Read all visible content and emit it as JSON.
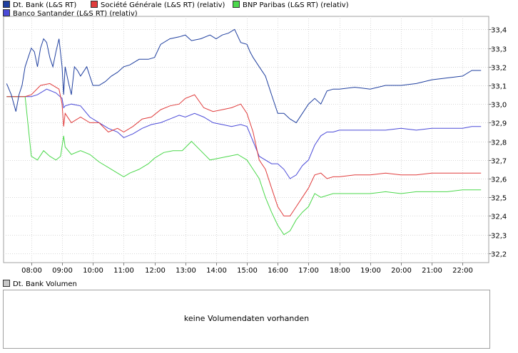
{
  "legend": [
    {
      "label": "Dt. Bank (L&S RT)",
      "color": "#1f3f9f"
    },
    {
      "label": "Société Générale (L&S RT) (relativ)",
      "color": "#e03c3c"
    },
    {
      "label": "BNP Paribas (L&S RT) (relativ)",
      "color": "#4bd84b"
    },
    {
      "label": "Banco Santander (L&S RT) (relativ)",
      "color": "#4a4ad8"
    }
  ],
  "volume": {
    "legend_label": "Dt. Bank Volumen",
    "legend_color": "#c8c8c8",
    "empty_message": "keine Volumendaten vorhanden"
  },
  "chart_data": {
    "type": "line",
    "y_tick_labels": [
      "32,2",
      "32,3",
      "32,4",
      "32,5",
      "32,6",
      "32,7",
      "32,8",
      "32,9",
      "33,0",
      "33,1",
      "33,2",
      "33,3",
      "33,4"
    ],
    "y_ticks": [
      32.2,
      32.3,
      32.4,
      32.5,
      32.6,
      32.7,
      32.8,
      32.9,
      33.0,
      33.1,
      33.2,
      33.3,
      33.4
    ],
    "ylim": [
      32.15,
      33.47
    ],
    "y_axis_side": "right",
    "x_tick_labels": [
      "08:00",
      "09:00",
      "10:00",
      "11:00",
      "12:00",
      "13:00",
      "14:00",
      "15:00",
      "16:00",
      "17:00",
      "18:00",
      "19:00",
      "20:00",
      "21:00",
      "22:00"
    ],
    "x_ticks": [
      8,
      9,
      10,
      11,
      12,
      13,
      14,
      15,
      16,
      17,
      18,
      19,
      20,
      21,
      22
    ],
    "xlim": [
      7.1,
      22.85
    ],
    "grid": true,
    "series": [
      {
        "name": "Dt. Bank (L&S RT)",
        "color": "#1f3f9f",
        "x": [
          7.2,
          7.35,
          7.5,
          7.6,
          7.7,
          7.8,
          7.9,
          8.0,
          8.1,
          8.2,
          8.3,
          8.4,
          8.5,
          8.6,
          8.7,
          8.8,
          8.9,
          9.0,
          9.05,
          9.1,
          9.2,
          9.3,
          9.4,
          9.5,
          9.6,
          9.8,
          10.0,
          10.2,
          10.4,
          10.6,
          10.8,
          11.0,
          11.2,
          11.5,
          11.8,
          12.0,
          12.2,
          12.5,
          12.8,
          13.0,
          13.2,
          13.5,
          13.8,
          14.0,
          14.2,
          14.4,
          14.6,
          14.8,
          15.0,
          15.1,
          15.2,
          15.4,
          15.6,
          15.8,
          16.0,
          16.2,
          16.4,
          16.6,
          16.8,
          17.0,
          17.2,
          17.4,
          17.6,
          17.8,
          18.0,
          18.5,
          19.0,
          19.5,
          20.0,
          20.5,
          21.0,
          21.5,
          22.0,
          22.3,
          22.6
        ],
        "y": [
          33.11,
          33.05,
          32.96,
          33.05,
          33.1,
          33.2,
          33.25,
          33.3,
          33.28,
          33.2,
          33.3,
          33.35,
          33.33,
          33.25,
          33.2,
          33.28,
          33.35,
          33.2,
          33.05,
          33.2,
          33.12,
          33.05,
          33.2,
          33.18,
          33.15,
          33.2,
          33.1,
          33.1,
          33.12,
          33.15,
          33.17,
          33.2,
          33.21,
          33.24,
          33.24,
          33.25,
          33.32,
          33.35,
          33.36,
          33.37,
          33.34,
          33.35,
          33.37,
          33.35,
          33.37,
          33.38,
          33.4,
          33.33,
          33.32,
          33.28,
          33.25,
          33.2,
          33.15,
          33.05,
          32.95,
          32.95,
          32.92,
          32.9,
          32.95,
          33.0,
          33.03,
          33.0,
          33.07,
          33.08,
          33.08,
          33.09,
          33.08,
          33.1,
          33.1,
          33.11,
          33.13,
          33.14,
          33.15,
          33.18,
          33.18
        ]
      },
      {
        "name": "Société Générale (L&S RT) (relativ)",
        "color": "#e03c3c",
        "x": [
          7.2,
          7.5,
          7.8,
          8.0,
          8.3,
          8.6,
          8.9,
          9.0,
          9.05,
          9.1,
          9.3,
          9.6,
          9.9,
          10.2,
          10.5,
          10.8,
          11.0,
          11.3,
          11.6,
          11.9,
          12.2,
          12.5,
          12.8,
          13.0,
          13.3,
          13.6,
          13.9,
          14.2,
          14.5,
          14.8,
          15.0,
          15.2,
          15.4,
          15.6,
          15.8,
          16.0,
          16.2,
          16.4,
          16.6,
          16.8,
          17.0,
          17.2,
          17.4,
          17.6,
          17.8,
          18.0,
          18.5,
          19.0,
          19.5,
          20.0,
          20.5,
          21.0,
          21.5,
          22.0,
          22.3,
          22.6
        ],
        "y": [
          33.04,
          33.04,
          33.04,
          33.05,
          33.1,
          33.11,
          33.08,
          33.0,
          32.88,
          32.95,
          32.9,
          32.93,
          32.9,
          32.9,
          32.85,
          32.87,
          32.85,
          32.88,
          32.92,
          32.93,
          32.97,
          32.99,
          33.0,
          33.03,
          33.05,
          32.98,
          32.96,
          32.97,
          32.98,
          33.0,
          32.95,
          32.85,
          32.7,
          32.65,
          32.55,
          32.45,
          32.4,
          32.4,
          32.45,
          32.5,
          32.55,
          32.62,
          32.63,
          32.6,
          32.61,
          32.61,
          32.62,
          32.62,
          32.63,
          32.62,
          32.62,
          32.63,
          32.63,
          32.63,
          32.63,
          32.63
        ]
      },
      {
        "name": "BNP Paribas (L&S RT) (relativ)",
        "color": "#4bd84b",
        "x": [
          7.2,
          7.5,
          7.8,
          8.0,
          8.2,
          8.4,
          8.6,
          8.8,
          8.95,
          9.05,
          9.1,
          9.3,
          9.6,
          9.9,
          10.2,
          10.5,
          10.8,
          11.0,
          11.2,
          11.5,
          11.8,
          12.0,
          12.3,
          12.6,
          12.9,
          13.2,
          13.5,
          13.8,
          14.1,
          14.4,
          14.7,
          15.0,
          15.2,
          15.4,
          15.6,
          15.8,
          16.0,
          16.2,
          16.4,
          16.6,
          16.8,
          17.0,
          17.2,
          17.4,
          17.6,
          17.8,
          18.0,
          18.5,
          19.0,
          19.5,
          20.0,
          20.5,
          21.0,
          21.5,
          22.0,
          22.3,
          22.6
        ],
        "y": [
          33.04,
          33.04,
          33.04,
          32.72,
          32.7,
          32.75,
          32.72,
          32.7,
          32.72,
          32.83,
          32.77,
          32.73,
          32.75,
          32.73,
          32.69,
          32.66,
          32.63,
          32.61,
          32.63,
          32.65,
          32.68,
          32.71,
          32.74,
          32.75,
          32.75,
          32.8,
          32.75,
          32.7,
          32.71,
          32.72,
          32.73,
          32.7,
          32.65,
          32.6,
          32.5,
          32.42,
          32.35,
          32.3,
          32.32,
          32.38,
          32.42,
          32.45,
          32.52,
          32.5,
          32.51,
          32.52,
          32.52,
          32.52,
          32.52,
          32.53,
          32.52,
          32.53,
          32.53,
          32.53,
          32.54,
          32.54,
          32.54
        ]
      },
      {
        "name": "Banco Santander (L&S RT) (relativ)",
        "color": "#4a4ad8",
        "x": [
          7.2,
          7.5,
          7.8,
          8.0,
          8.2,
          8.5,
          8.8,
          9.0,
          9.05,
          9.1,
          9.3,
          9.6,
          9.9,
          10.2,
          10.5,
          10.8,
          11.0,
          11.3,
          11.6,
          11.9,
          12.2,
          12.5,
          12.8,
          13.0,
          13.3,
          13.6,
          13.9,
          14.2,
          14.5,
          14.8,
          15.0,
          15.2,
          15.4,
          15.6,
          15.8,
          16.0,
          16.2,
          16.4,
          16.6,
          16.8,
          17.0,
          17.2,
          17.4,
          17.6,
          17.8,
          18.0,
          18.5,
          19.0,
          19.5,
          20.0,
          20.5,
          21.0,
          21.5,
          22.0,
          22.3,
          22.6
        ],
        "y": [
          33.04,
          33.04,
          33.04,
          33.04,
          33.05,
          33.08,
          33.06,
          33.03,
          32.98,
          32.99,
          33.0,
          32.99,
          32.93,
          32.9,
          32.87,
          32.85,
          32.82,
          32.84,
          32.87,
          32.89,
          32.9,
          32.92,
          32.94,
          32.93,
          32.95,
          32.93,
          32.9,
          32.89,
          32.88,
          32.89,
          32.88,
          32.8,
          32.72,
          32.7,
          32.68,
          32.68,
          32.65,
          32.6,
          32.62,
          32.67,
          32.7,
          32.78,
          32.83,
          32.85,
          32.85,
          32.86,
          32.86,
          32.86,
          32.86,
          32.87,
          32.86,
          32.87,
          32.87,
          32.87,
          32.88,
          32.88
        ]
      }
    ]
  }
}
